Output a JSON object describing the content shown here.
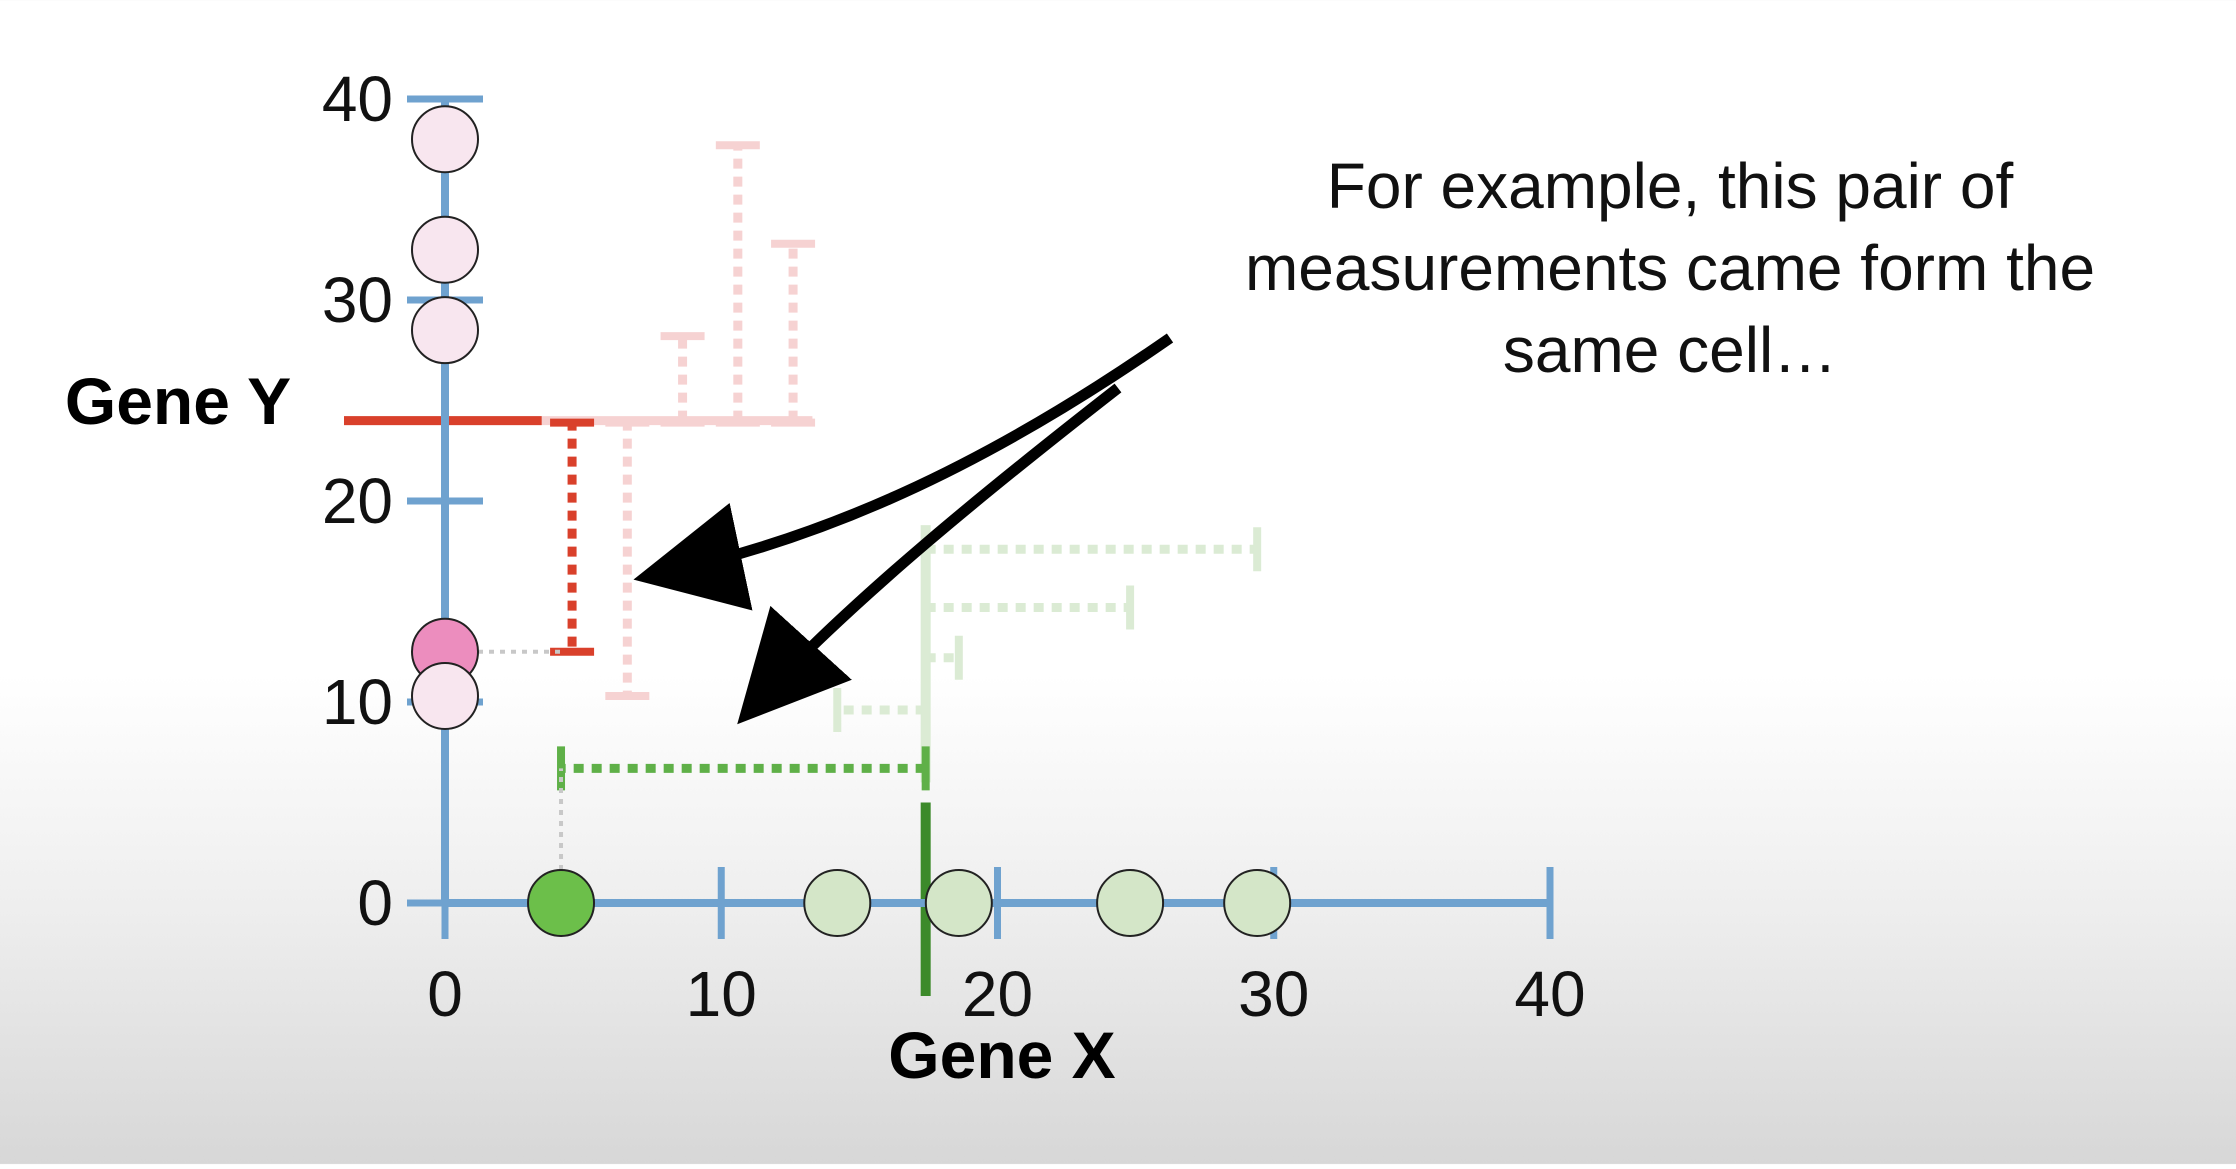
{
  "chart_data": {
    "type": "scatter",
    "xlabel": "Gene X",
    "ylabel": "Gene Y",
    "xlim": [
      0,
      40
    ],
    "ylim": [
      0,
      40
    ],
    "x_ticks": [
      "0",
      "10",
      "20",
      "30",
      "40"
    ],
    "y_ticks": [
      "0",
      "10",
      "20",
      "30",
      "40"
    ],
    "y_axis_points": [
      {
        "y": 38,
        "highlight": false
      },
      {
        "y": 32.5,
        "highlight": false
      },
      {
        "y": 28.5,
        "highlight": false
      },
      {
        "y": 12.5,
        "highlight": true
      },
      {
        "y": 10.3,
        "highlight": false
      }
    ],
    "x_axis_points": [
      {
        "x": 4.2,
        "highlight": true
      },
      {
        "x": 14.2,
        "highlight": false
      },
      {
        "x": 18.6,
        "highlight": false
      },
      {
        "x": 24.8,
        "highlight": false
      },
      {
        "x": 29.4,
        "highlight": false
      }
    ],
    "y_threshold": 24,
    "x_threshold": 17.4,
    "y_residuals": [
      {
        "x": 4.6,
        "y1": 12.5,
        "highlight": true
      },
      {
        "x": 6.6,
        "y1": 10.3,
        "highlight": false
      },
      {
        "x": 8.6,
        "y1": 28.2,
        "highlight": false
      },
      {
        "x": 10.6,
        "y1": 37.7,
        "highlight": false
      },
      {
        "x": 12.6,
        "y1": 32.8,
        "highlight": false
      }
    ],
    "x_residuals": [
      {
        "y": 6.7,
        "x1": 4.2,
        "highlight": true
      },
      {
        "y": 9.6,
        "x1": 14.2,
        "highlight": false
      },
      {
        "y": 12.2,
        "x1": 18.6,
        "highlight": false
      },
      {
        "y": 14.7,
        "x1": 24.8,
        "highlight": false
      },
      {
        "y": 17.6,
        "x1": 29.4,
        "highlight": false
      }
    ]
  },
  "annotation": {
    "lines": [
      "For example, this pair of",
      "measurements came form the",
      "same cell…"
    ]
  },
  "colors": {
    "axis": "#6fa2cf",
    "red_dark": "#d9402b",
    "red_light": "#f6d2d2",
    "green_dark": "#5fb048",
    "green_light": "#dbebd4",
    "pink_fill_dark": "#ec8dbe",
    "pink_fill_light": "#f8e6ef",
    "green_fill_dark": "#6cbf4a",
    "green_fill_light": "#d4e6c8"
  }
}
